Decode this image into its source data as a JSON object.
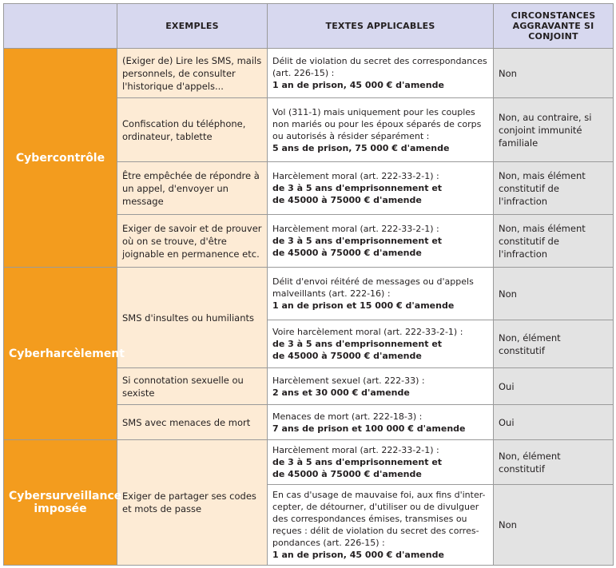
{
  "headers": {
    "category": "",
    "examples": "EXEMPLES",
    "texts": "TEXTES APPLICABLES",
    "circumstances": "CIRCONSTANCES AGGRAVANTE SI CONJOINT"
  },
  "rows": [
    {
      "category": "Cybercontrôle",
      "example": "(Exiger de) Lire les SMS, mails personnels, de consulter l'historique d'appels...",
      "text": "Délit de violation du secret des correspondances (art. 226-15) :",
      "penalty": [
        "1 an de prison, 45 000 € d'amende"
      ],
      "circumstance": "Non"
    },
    {
      "category": "",
      "example": "Confiscation du téléphone, ordinateur, tablette",
      "text": "Vol (311-1) mais uniquement pour les couples non mariés ou pour les époux séparés de corps ou autorisés à résider séparément :",
      "penalty": [
        "5 ans de prison, 75 000 € d'amende"
      ],
      "circumstance": "Non, au contraire, si conjoint immunité familiale"
    },
    {
      "category": "",
      "example": "Être empêchée de répondre à un appel, d'envoyer un message",
      "text": "Harcèlement moral (art. 222-33-2-1) :",
      "penalty": [
        "de 3 à 5 ans d'emprisonnement et",
        "de 45000 à 75000 € d'amende"
      ],
      "circumstance": "Non, mais élément constitutif de l'infraction"
    },
    {
      "category": "",
      "example": "Exiger de savoir et de prouver où on se trouve, d'être joignable en permanence etc.",
      "text": "Harcèlement moral (art. 222-33-2-1) :",
      "penalty": [
        "de 3 à 5 ans d'emprisonnement et",
        "de 45000 à 75000 € d'amende"
      ],
      "circumstance": "Non, mais élément constitutif de l'infraction"
    },
    {
      "category": "Cyberharcèlement",
      "example": "SMS d'insultes ou humiliants",
      "text": "Délit d'envoi réitéré de messages ou d'appels malveillants (art. 222-16) :",
      "penalty": [
        "1 an de prison et 15 000 € d'amende"
      ],
      "circumstance": "Non"
    },
    {
      "category": "",
      "example": "",
      "text": "Voire harcèlement moral (art. 222-33-2-1) :",
      "penalty": [
        "de 3 à 5 ans d'emprisonnement et",
        "de 45000 à 75000 € d'amende"
      ],
      "circumstance": "Non, élément constitutif"
    },
    {
      "category": "",
      "example": "Si connotation sexuelle ou sexiste",
      "text": "Harcèlement sexuel (art. 222-33) :",
      "penalty": [
        "2 ans et 30 000 € d'amende"
      ],
      "circumstance": "Oui"
    },
    {
      "category": "",
      "example": "SMS avec menaces de mort",
      "text": "Menaces de mort (art. 222-18-3) :",
      "penalty": [
        "7 ans de prison et 100 000 € d'amende"
      ],
      "circumstance": "Oui"
    },
    {
      "category": "Cybersurveillance imposée",
      "example": "Exiger de partager ses codes et mots de passe",
      "text": "Harcèlement moral (art. 222-33-2-1) :",
      "penalty": [
        "de 3 à 5 ans d'emprisonnement et",
        "de 45000 à 75000 € d'amende"
      ],
      "circumstance": "Non, élément constitutif"
    },
    {
      "category": "",
      "example": "",
      "text": "En cas d'usage de mauvaise foi, aux fins d'inter-cepter, de détourner, d'utiliser ou de divulguer des correspondances émises, transmises ou reçues : délit de violation du secret des corres-pondances (art. 226-15) :",
      "penalty": [
        "1 an de prison, 45 000 € d'amende"
      ],
      "circumstance": "Non"
    }
  ],
  "colors": {
    "header_bg": "#d7d8ef",
    "category_bg": "#f39c1e",
    "example_bg": "#fdebd5",
    "circumstance_bg": "#e3e3e3",
    "border": "#9a9a9a"
  }
}
